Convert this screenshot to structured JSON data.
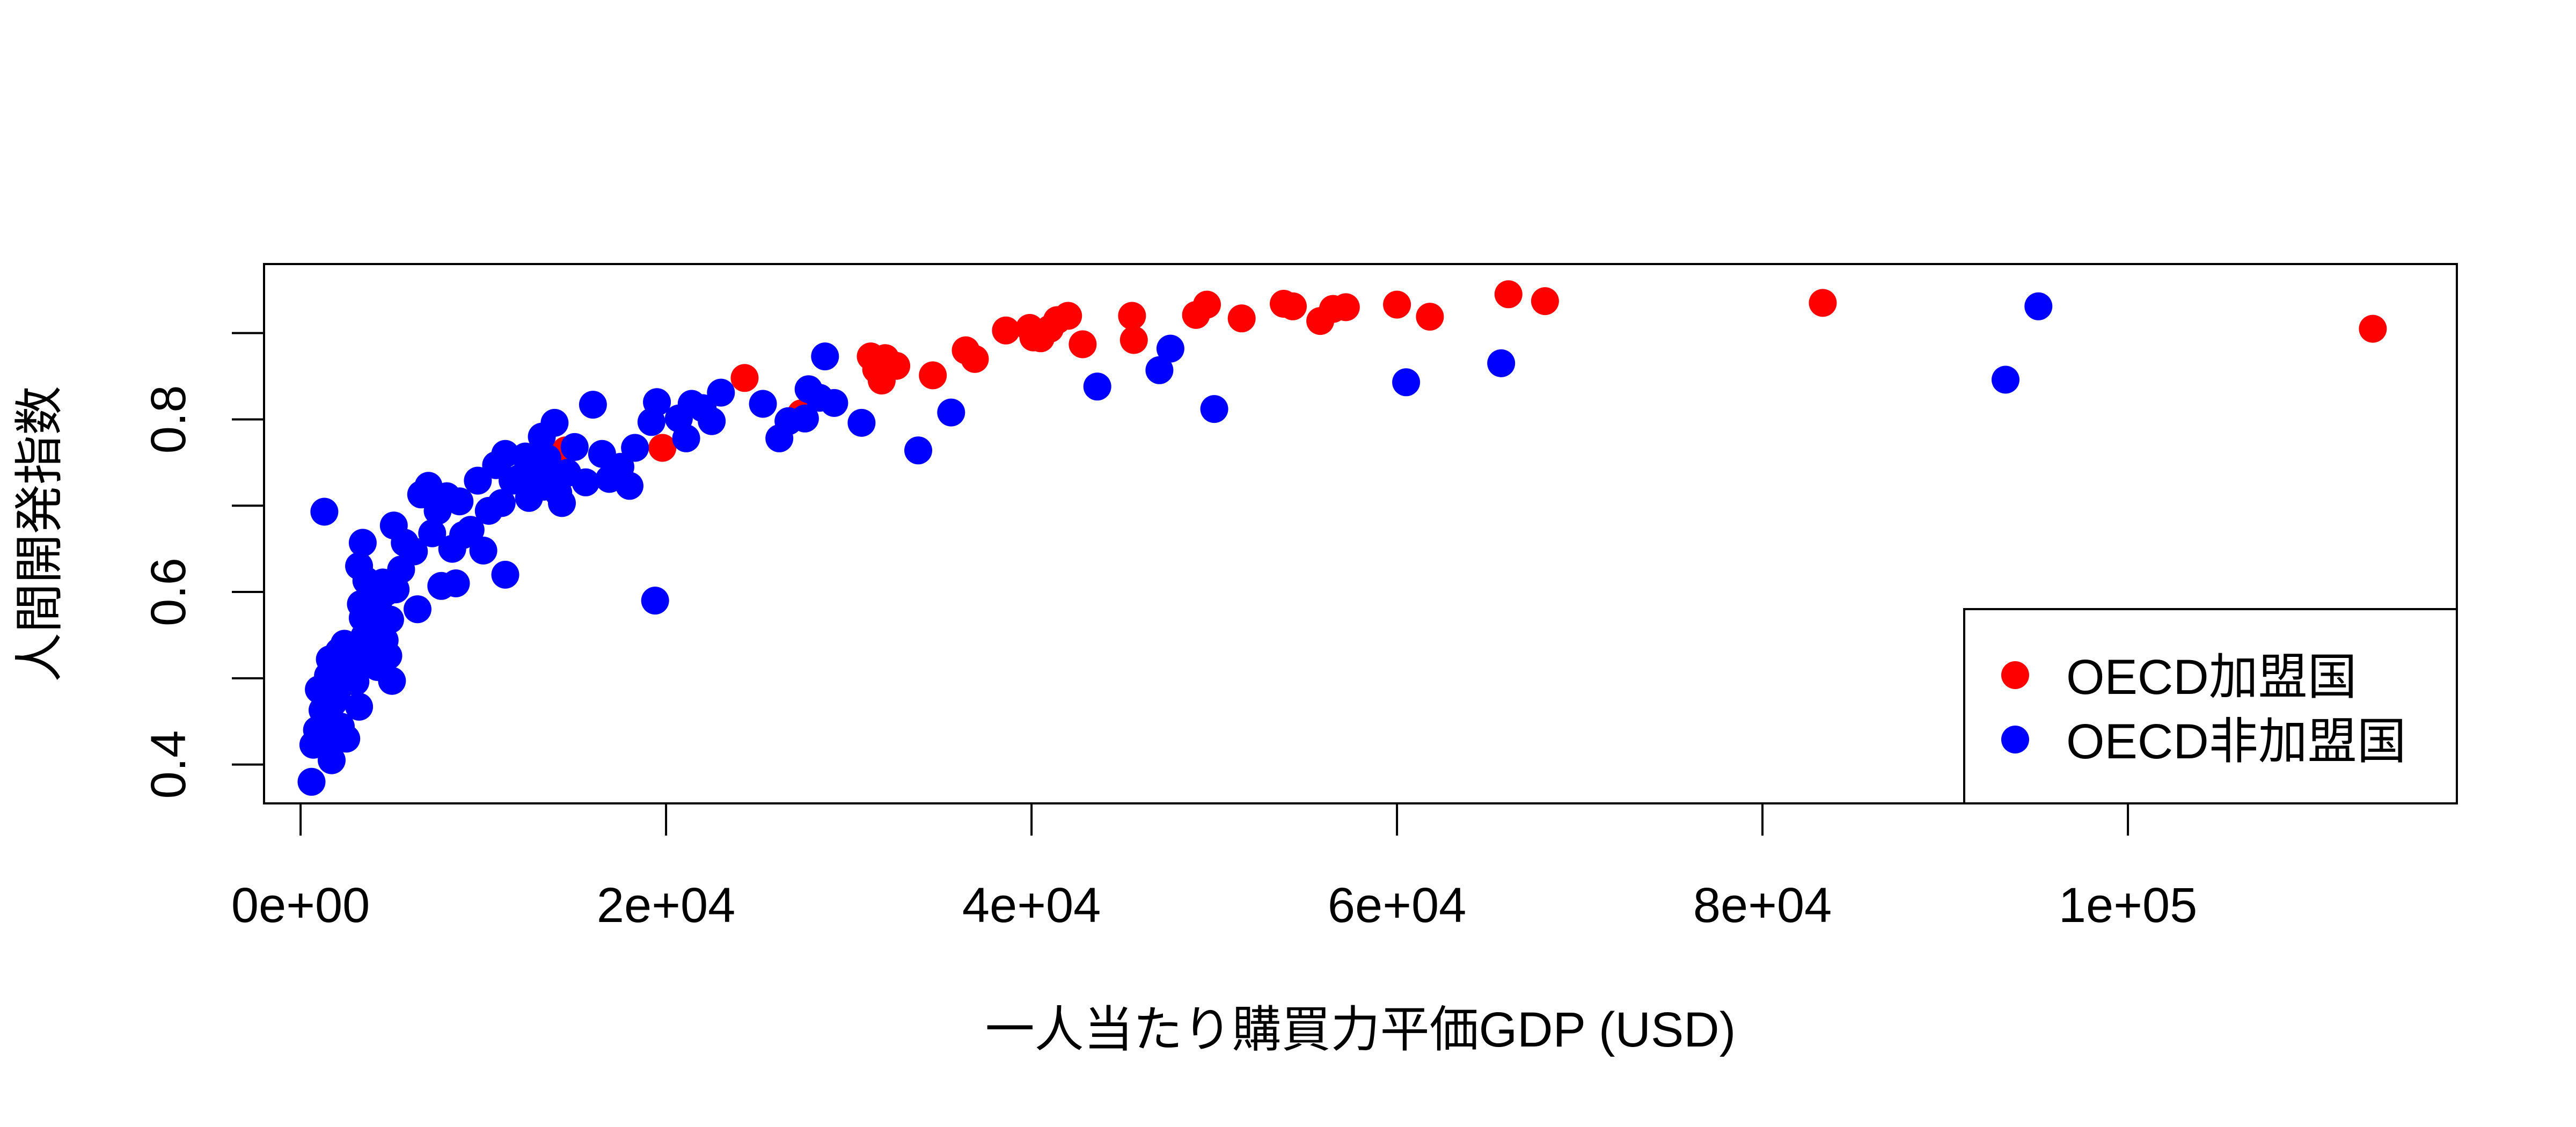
{
  "chart_data": {
    "type": "scatter",
    "xlabel": "一人当たり購買力平価GDP (USD)",
    "ylabel": "人間開発指数",
    "xlim": [
      -2000,
      118000
    ],
    "ylim": [
      0.355,
      0.98
    ],
    "x_ticks": [
      0,
      20000,
      40000,
      60000,
      80000,
      100000
    ],
    "x_tick_labels": [
      "0e+00",
      "2e+04",
      "4e+04",
      "6e+04",
      "8e+04",
      "1e+05"
    ],
    "y_ticks": [
      0.4,
      0.5,
      0.6,
      0.7,
      0.8,
      0.9
    ],
    "y_tick_labels": [
      "0.4",
      "",
      "0.6",
      "",
      "0.8",
      ""
    ],
    "grid": false,
    "legend_position": "bottom-right",
    "series": [
      {
        "name": "OECD加盟国",
        "color": "#ff0000",
        "points": [
          [
            14500,
            0.764
          ],
          [
            19800,
            0.767
          ],
          [
            24300,
            0.848
          ],
          [
            27400,
            0.807
          ],
          [
            31200,
            0.873
          ],
          [
            31500,
            0.858
          ],
          [
            31800,
            0.845
          ],
          [
            32000,
            0.871
          ],
          [
            32600,
            0.862
          ],
          [
            34600,
            0.851
          ],
          [
            36400,
            0.88
          ],
          [
            36900,
            0.87
          ],
          [
            38600,
            0.903
          ],
          [
            39900,
            0.906
          ],
          [
            40100,
            0.895
          ],
          [
            40500,
            0.894
          ],
          [
            41000,
            0.905
          ],
          [
            41400,
            0.915
          ],
          [
            42000,
            0.92
          ],
          [
            42800,
            0.887
          ],
          [
            45500,
            0.92
          ],
          [
            45600,
            0.892
          ],
          [
            49000,
            0.921
          ],
          [
            49600,
            0.933
          ],
          [
            51500,
            0.917
          ],
          [
            53800,
            0.934
          ],
          [
            54300,
            0.931
          ],
          [
            55800,
            0.914
          ],
          [
            56500,
            0.928
          ],
          [
            57200,
            0.93
          ],
          [
            60000,
            0.933
          ],
          [
            61800,
            0.919
          ],
          [
            66100,
            0.945
          ],
          [
            68100,
            0.937
          ],
          [
            83300,
            0.935
          ],
          [
            113400,
            0.905
          ]
        ]
      },
      {
        "name": "OECD非加盟国",
        "color": "#0000ff",
        "points": [
          [
            600,
            0.38
          ],
          [
            700,
            0.423
          ],
          [
            900,
            0.44
          ],
          [
            1000,
            0.487
          ],
          [
            1200,
            0.463
          ],
          [
            1300,
            0.693
          ],
          [
            1400,
            0.432
          ],
          [
            1500,
            0.503
          ],
          [
            1600,
            0.522
          ],
          [
            1700,
            0.405
          ],
          [
            1800,
            0.472
          ],
          [
            1900,
            0.513
          ],
          [
            2000,
            0.485
          ],
          [
            2100,
            0.531
          ],
          [
            2200,
            0.444
          ],
          [
            2300,
            0.497
          ],
          [
            2400,
            0.54
          ],
          [
            2500,
            0.43
          ],
          [
            2700,
            0.518
          ],
          [
            2900,
            0.511
          ],
          [
            3000,
            0.496
          ],
          [
            3100,
            0.535
          ],
          [
            3200,
            0.467
          ],
          [
            3200,
            0.63
          ],
          [
            3300,
            0.586
          ],
          [
            3400,
            0.57
          ],
          [
            3400,
            0.657
          ],
          [
            3500,
            0.549
          ],
          [
            3600,
            0.613
          ],
          [
            3700,
            0.52
          ],
          [
            3800,
            0.561
          ],
          [
            3900,
            0.602
          ],
          [
            4000,
            0.533
          ],
          [
            4100,
            0.579
          ],
          [
            4200,
            0.513
          ],
          [
            4300,
            0.591
          ],
          [
            4400,
            0.558
          ],
          [
            4500,
            0.611
          ],
          [
            4600,
            0.544
          ],
          [
            4700,
            0.6
          ],
          [
            4800,
            0.526
          ],
          [
            4900,
            0.568
          ],
          [
            5000,
            0.497
          ],
          [
            5100,
            0.677
          ],
          [
            5200,
            0.603
          ],
          [
            5500,
            0.626
          ],
          [
            5700,
            0.657
          ],
          [
            6200,
            0.647
          ],
          [
            6400,
            0.58
          ],
          [
            6600,
            0.713
          ],
          [
            7000,
            0.723
          ],
          [
            7200,
            0.668
          ],
          [
            7500,
            0.694
          ],
          [
            7700,
            0.607
          ],
          [
            8000,
            0.711
          ],
          [
            8300,
            0.65
          ],
          [
            8500,
            0.61
          ],
          [
            8700,
            0.705
          ],
          [
            8900,
            0.666
          ],
          [
            9300,
            0.672
          ],
          [
            9700,
            0.729
          ],
          [
            10000,
            0.648
          ],
          [
            10300,
            0.694
          ],
          [
            10700,
            0.747
          ],
          [
            11000,
            0.703
          ],
          [
            11200,
            0.62
          ],
          [
            11200,
            0.76
          ],
          [
            11600,
            0.729
          ],
          [
            12000,
            0.732
          ],
          [
            12300,
            0.757
          ],
          [
            12500,
            0.709
          ],
          [
            12800,
            0.741
          ],
          [
            13200,
            0.78
          ],
          [
            13300,
            0.722
          ],
          [
            13500,
            0.755
          ],
          [
            13700,
            0.733
          ],
          [
            13900,
            0.796
          ],
          [
            14100,
            0.715
          ],
          [
            14300,
            0.703
          ],
          [
            14600,
            0.738
          ],
          [
            15000,
            0.768
          ],
          [
            15600,
            0.727
          ],
          [
            16000,
            0.817
          ],
          [
            16500,
            0.76
          ],
          [
            16900,
            0.731
          ],
          [
            17500,
            0.745
          ],
          [
            18000,
            0.723
          ],
          [
            18300,
            0.767
          ],
          [
            19200,
            0.797
          ],
          [
            19400,
            0.59
          ],
          [
            19500,
            0.82
          ],
          [
            20700,
            0.801
          ],
          [
            21100,
            0.778
          ],
          [
            21400,
            0.818
          ],
          [
            22000,
            0.813
          ],
          [
            22500,
            0.798
          ],
          [
            23000,
            0.831
          ],
          [
            25300,
            0.818
          ],
          [
            26200,
            0.778
          ],
          [
            26700,
            0.798
          ],
          [
            27600,
            0.801
          ],
          [
            27800,
            0.835
          ],
          [
            28400,
            0.825
          ],
          [
            28700,
            0.873
          ],
          [
            29200,
            0.819
          ],
          [
            30700,
            0.796
          ],
          [
            33800,
            0.764
          ],
          [
            35600,
            0.808
          ],
          [
            43600,
            0.838
          ],
          [
            47000,
            0.857
          ],
          [
            47600,
            0.882
          ],
          [
            50000,
            0.812
          ],
          [
            60500,
            0.843
          ],
          [
            65700,
            0.865
          ],
          [
            93300,
            0.846
          ],
          [
            95100,
            0.931
          ]
        ]
      }
    ]
  }
}
